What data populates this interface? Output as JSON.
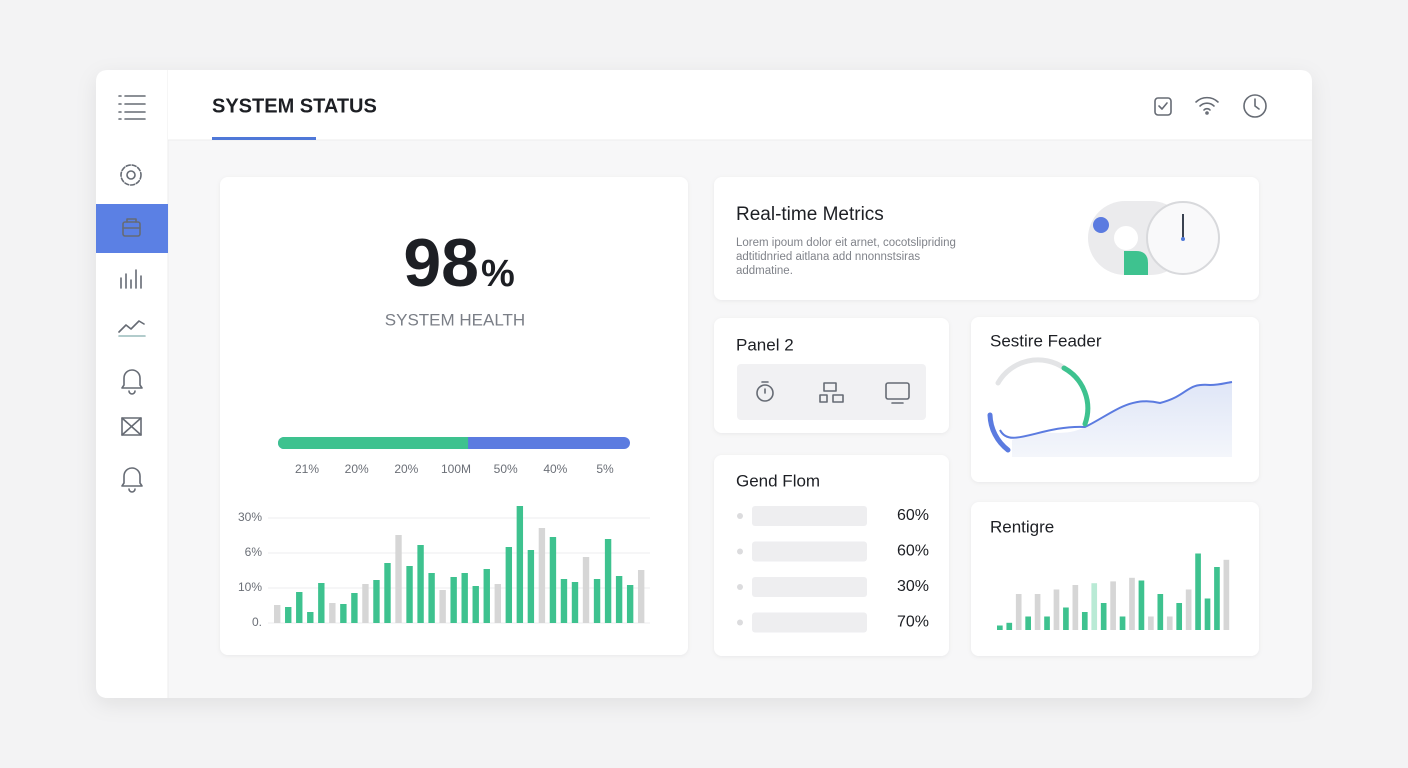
{
  "header": {
    "title": "SYSTEM STATUS"
  },
  "health": {
    "value": "98",
    "unit": "%",
    "label": "SYSTEM HEALTH",
    "progress": {
      "split": 54,
      "xlim": [
        0,
        100
      ]
    },
    "progress_labels": [
      "21%",
      "20%",
      "20%",
      "100M",
      "50%",
      "40%",
      "5%"
    ],
    "chart": {
      "y_labels": [
        "30%",
        "6%",
        "10%",
        "0."
      ],
      "ylim": [
        0,
        105
      ],
      "values": [
        18,
        16,
        31,
        11,
        40,
        20,
        19,
        30,
        39,
        43,
        60,
        88,
        57,
        78,
        50,
        33,
        46,
        50,
        37,
        54,
        39,
        76,
        117,
        73,
        95,
        86,
        44,
        41,
        66,
        44,
        84,
        47,
        38,
        53
      ],
      "colors": [
        "#d6d6d6",
        "#3ec28f",
        "#3ec28f",
        "#3ec28f",
        "#3ec28f",
        "#d6d6d6",
        "#3ec28f",
        "#3ec28f",
        "#d6d6d6",
        "#3ec28f",
        "#3ec28f",
        "#d6d6d6",
        "#3ec28f",
        "#3ec28f",
        "#3ec28f",
        "#d6d6d6",
        "#3ec28f",
        "#3ec28f",
        "#3ec28f",
        "#3ec28f",
        "#d6d6d6",
        "#3ec28f",
        "#3ec28f",
        "#3ec28f",
        "#d6d6d6",
        "#3ec28f",
        "#3ec28f",
        "#3ec28f",
        "#d6d6d6",
        "#3ec28f",
        "#3ec28f",
        "#3ec28f",
        "#3ec28f",
        "#d6d6d6"
      ]
    }
  },
  "realtime": {
    "title": "Real-time Metrics",
    "lines": [
      "Lorem ipoum dolor eit arnet, cocotslipriding",
      "adtitidnried aitlana add nnonnstsiras",
      "addmatine."
    ]
  },
  "panel2": {
    "title": "Panel 2"
  },
  "sestire": {
    "title": "Sestire Feader"
  },
  "gend": {
    "title": "Gend Flom",
    "rows": [
      "60%",
      "60%",
      "30%",
      "70%"
    ]
  },
  "rentigre": {
    "title": "Rentigre",
    "chart": {
      "ylim": [
        0,
        100
      ],
      "values": [
        5,
        8,
        40,
        15,
        40,
        15,
        45,
        25,
        50,
        20,
        52,
        30,
        54,
        15,
        58,
        55,
        15,
        40,
        15,
        30,
        45,
        85,
        35,
        70,
        78
      ],
      "colors": [
        "#3ec28f",
        "#3ec28f",
        "#d6d6d6",
        "#3ec28f",
        "#d6d6d6",
        "#3ec28f",
        "#d6d6d6",
        "#3ec28f",
        "#d6d6d6",
        "#3ec28f",
        "#b9ead5",
        "#3ec28f",
        "#d6d6d6",
        "#3ec28f",
        "#d6d6d6",
        "#3ec28f",
        "#d6d6d6",
        "#3ec28f",
        "#d6d6d6",
        "#3ec28f",
        "#d6d6d6",
        "#3ec28f",
        "#3ec28f",
        "#3ec28f",
        "#d6d6d6"
      ]
    }
  }
}
